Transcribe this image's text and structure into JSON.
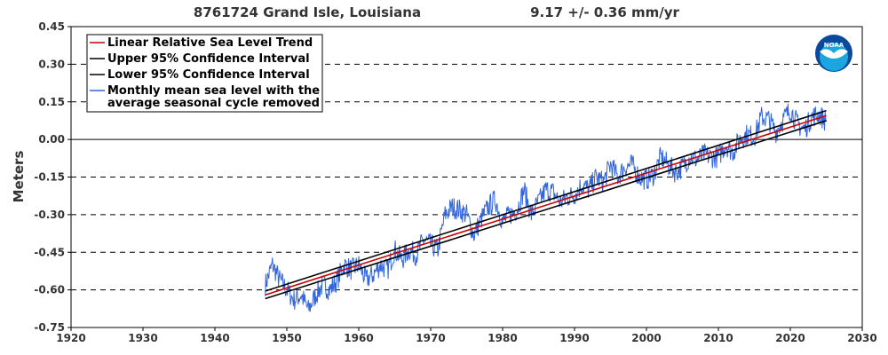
{
  "header": {
    "station": "8761724 Grand Isle, Louisiana",
    "rate": "9.17 +/-  0.36 mm/yr"
  },
  "logo": {
    "text": "NOAA",
    "colors": {
      "outer": "#0a4a9e",
      "inner": "#1aa7e0",
      "bird": "#ffffff"
    }
  },
  "chart_data": {
    "type": "line",
    "title": "8761724 Grand Isle, Louisiana",
    "subtitle": "9.17 +/-  0.36 mm/yr",
    "xlabel": "",
    "ylabel": "Meters",
    "xlim": [
      1920,
      2030
    ],
    "ylim": [
      -0.75,
      0.45
    ],
    "x_ticks": [
      1920,
      1930,
      1940,
      1950,
      1960,
      1970,
      1980,
      1990,
      2000,
      2010,
      2020,
      2030
    ],
    "y_ticks": [
      {
        "value": 0.45,
        "label": "0.45"
      },
      {
        "value": 0.3,
        "label": "0.30"
      },
      {
        "value": 0.15,
        "label": "0.15"
      },
      {
        "value": 0.0,
        "label": "0.00"
      },
      {
        "value": -0.15,
        "label": "-0.15"
      },
      {
        "value": -0.3,
        "label": "-0.30"
      },
      {
        "value": -0.45,
        "label": "-0.45"
      },
      {
        "value": -0.6,
        "label": "-0.60"
      },
      {
        "value": -0.75,
        "label": "-0.75"
      }
    ],
    "grid": "horizontal dashed",
    "legend_position": "top-left",
    "legend": [
      {
        "label": "Linear Relative Sea Level Trend",
        "color": "#cc0000"
      },
      {
        "label": "Upper 95% Confidence Interval",
        "color": "#000000"
      },
      {
        "label": "Lower 95% Confidence Interval",
        "color": "#000000"
      },
      {
        "label": "Monthly mean sea level with the",
        "label2": "average seasonal cycle removed",
        "color": "#3366dd"
      }
    ],
    "series": [
      {
        "name": "Linear Relative Sea Level Trend",
        "color": "#cc0000",
        "x": [
          1947,
          2025
        ],
        "y": [
          -0.62,
          0.095
        ]
      },
      {
        "name": "Upper 95% Confidence Interval",
        "color": "#000000",
        "x": [
          1947,
          2025
        ],
        "y": [
          -0.605,
          0.115
        ]
      },
      {
        "name": "Lower 95% Confidence Interval",
        "color": "#000000",
        "x": [
          1947,
          2025
        ],
        "y": [
          -0.635,
          0.075
        ]
      },
      {
        "name": "Monthly mean sea level with the average seasonal cycle removed",
        "color": "#3366dd",
        "x": [
          1947.0,
          1948.0,
          1949.0,
          1950.0,
          1951.0,
          1952.0,
          1953.0,
          1954.0,
          1955.0,
          1956.0,
          1957.0,
          1958.0,
          1959.0,
          1960.0,
          1961.0,
          1962.0,
          1963.0,
          1964.0,
          1965.0,
          1966.0,
          1967.0,
          1968.0,
          1969.0,
          1970.0,
          1971.0,
          1972.0,
          1973.0,
          1974.0,
          1975.0,
          1976.0,
          1977.0,
          1978.0,
          1979.0,
          1980.0,
          1981.0,
          1982.0,
          1983.0,
          1984.0,
          1985.0,
          1986.0,
          1987.0,
          1988.0,
          1989.0,
          1990.0,
          1991.0,
          1992.0,
          1993.0,
          1994.0,
          1995.0,
          1996.0,
          1997.0,
          1998.0,
          1999.0,
          2000.0,
          2001.0,
          2002.0,
          2003.0,
          2004.0,
          2005.0,
          2006.0,
          2007.0,
          2008.0,
          2009.0,
          2010.0,
          2011.0,
          2012.0,
          2013.0,
          2014.0,
          2015.0,
          2016.0,
          2017.0,
          2018.0,
          2019.0,
          2020.0,
          2021.0,
          2022.0,
          2023.0,
          2024.0,
          2025.0
        ],
        "y": [
          -0.58,
          -0.5,
          -0.56,
          -0.6,
          -0.64,
          -0.62,
          -0.68,
          -0.62,
          -0.58,
          -0.6,
          -0.56,
          -0.5,
          -0.52,
          -0.5,
          -0.56,
          -0.54,
          -0.5,
          -0.52,
          -0.44,
          -0.48,
          -0.44,
          -0.46,
          -0.4,
          -0.42,
          -0.44,
          -0.3,
          -0.27,
          -0.28,
          -0.3,
          -0.38,
          -0.32,
          -0.27,
          -0.24,
          -0.33,
          -0.3,
          -0.28,
          -0.2,
          -0.3,
          -0.25,
          -0.2,
          -0.21,
          -0.25,
          -0.23,
          -0.22,
          -0.18,
          -0.2,
          -0.15,
          -0.17,
          -0.1,
          -0.15,
          -0.11,
          -0.1,
          -0.15,
          -0.16,
          -0.14,
          -0.07,
          -0.1,
          -0.13,
          -0.11,
          -0.07,
          -0.08,
          -0.06,
          -0.07,
          -0.07,
          -0.02,
          -0.05,
          0.0,
          0.02,
          0.01,
          0.09,
          0.08,
          0.03,
          0.08,
          0.12,
          0.06,
          0.04,
          0.09,
          0.1,
          0.07
        ]
      }
    ]
  }
}
